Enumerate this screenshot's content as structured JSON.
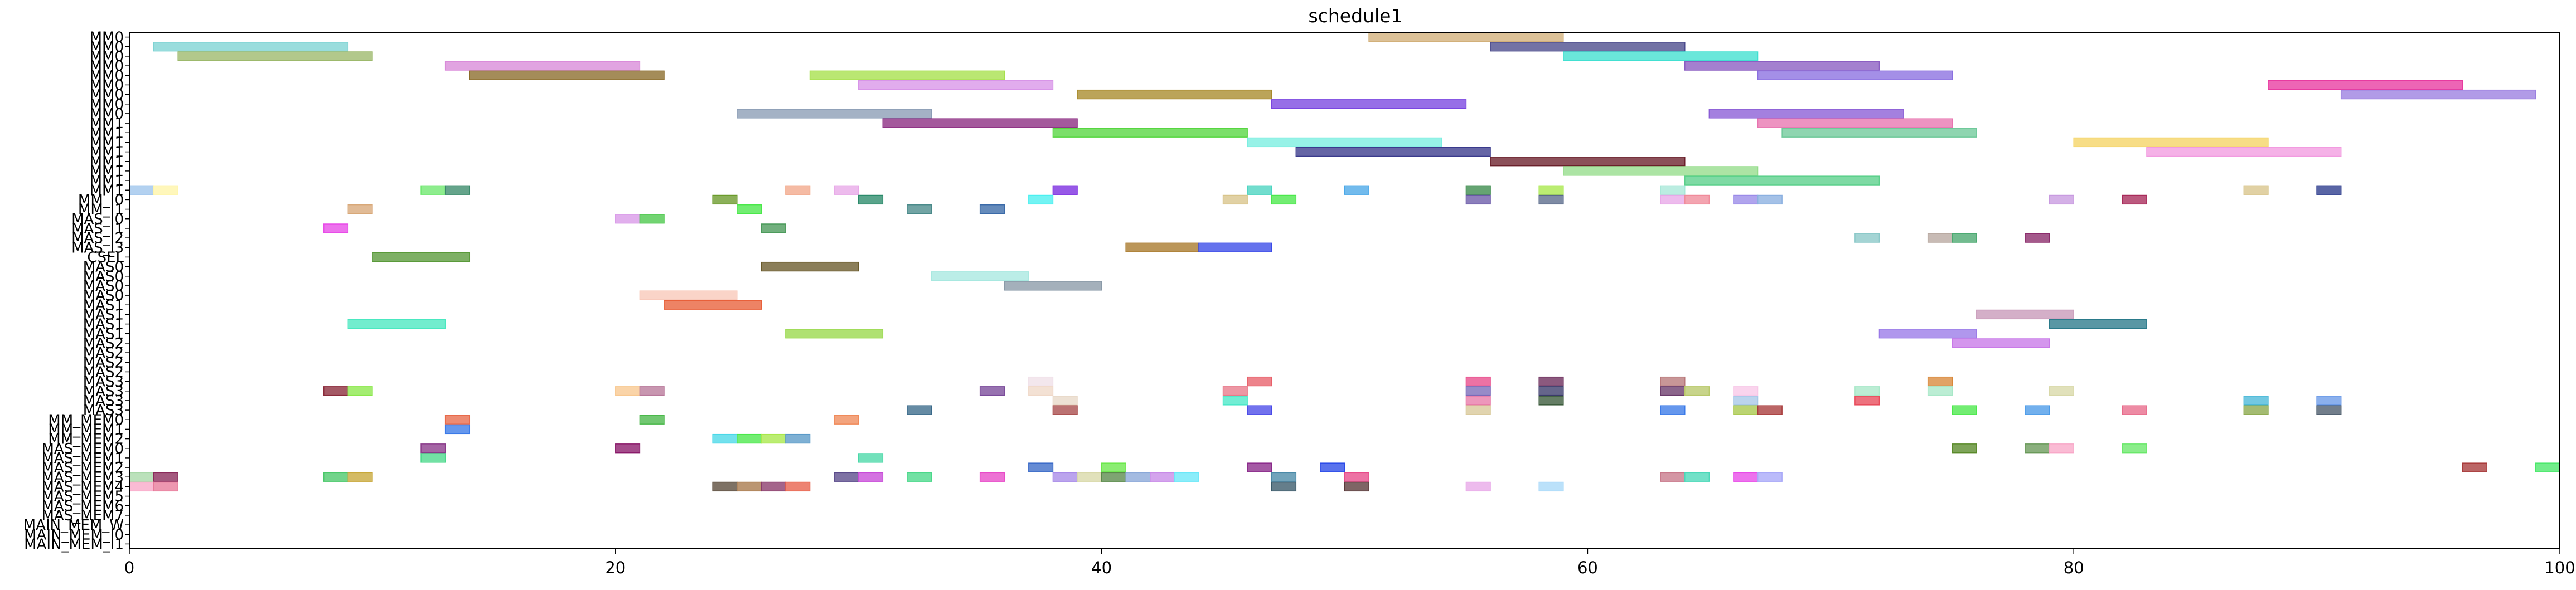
{
  "chart_data": {
    "type": "gantt",
    "title": "schedule1",
    "xlabel": "",
    "ylabel": "",
    "xlim": [
      0,
      100
    ],
    "xticks": [
      0,
      20,
      40,
      60,
      80,
      100
    ],
    "xtick_labels": [
      "0",
      "20",
      "40",
      "60",
      "80",
      "100"
    ],
    "grid": false,
    "rows": [
      "MM0",
      "MM0",
      "MM0",
      "MM0",
      "MM0",
      "MM0",
      "MM0",
      "MM0",
      "MM0",
      "MM1",
      "MM1",
      "MM1",
      "MM1",
      "MM1",
      "MM1",
      "MM1",
      "MM1",
      "MM_I0",
      "MM_I1",
      "MAS_I0",
      "MAS_I1",
      "MAS_I2",
      "MAS_I3",
      "CSEL",
      "MAS0",
      "MAS0",
      "MAS0",
      "MAS0",
      "MAS1",
      "MAS1",
      "MAS1",
      "MAS1",
      "MAS2",
      "MAS2",
      "MAS2",
      "MAS2",
      "MAS3",
      "MAS3",
      "MAS3",
      "MAS3",
      "MM_MEM0",
      "MM_MEM1",
      "MM_MEM2",
      "MAS_MEM0",
      "MAS_MEM1",
      "MAS_MEM2",
      "MAS_MEM3",
      "MAS_MEM4",
      "MAS_MEM5",
      "MAS_MEM6",
      "MAS_MEM7",
      "MAIN_MEM_W",
      "MAIN_MEM_I0",
      "MAIN_MEM_I1"
    ],
    "bars": [
      {
        "row": 0,
        "start": 51,
        "end": 59,
        "color": "#d2b07a"
      },
      {
        "row": 1,
        "start": 1,
        "end": 9,
        "color": "#7ed3d3"
      },
      {
        "row": 1,
        "start": 56,
        "end": 64,
        "color": "#4a4a8c"
      },
      {
        "row": 2,
        "start": 2,
        "end": 10,
        "color": "#9cb86a"
      },
      {
        "row": 2,
        "start": 59,
        "end": 67,
        "color": "#40e0d0"
      },
      {
        "row": 3,
        "start": 13,
        "end": 21,
        "color": "#d98bd9"
      },
      {
        "row": 3,
        "start": 64,
        "end": 72,
        "color": "#8a5cc2"
      },
      {
        "row": 4,
        "start": 14,
        "end": 22,
        "color": "#8b6b2a"
      },
      {
        "row": 4,
        "start": 28,
        "end": 36,
        "color": "#a6e04a"
      },
      {
        "row": 4,
        "start": 67,
        "end": 75,
        "color": "#8a6fe0"
      },
      {
        "row": 5,
        "start": 30,
        "end": 38,
        "color": "#d895e8"
      },
      {
        "row": 5,
        "start": 88,
        "end": 96,
        "color": "#e83aa0"
      },
      {
        "row": 6,
        "start": 39,
        "end": 47,
        "color": "#a88a2a"
      },
      {
        "row": 6,
        "start": 91,
        "end": 99,
        "color": "#9b7fe0"
      },
      {
        "row": 7,
        "start": 47,
        "end": 55,
        "color": "#7a45e0"
      },
      {
        "row": 8,
        "start": 25,
        "end": 33,
        "color": "#8a9cb5"
      },
      {
        "row": 8,
        "start": 65,
        "end": 73,
        "color": "#8a5cd6"
      },
      {
        "row": 9,
        "start": 31,
        "end": 39,
        "color": "#8a2a80"
      },
      {
        "row": 9,
        "start": 67,
        "end": 75,
        "color": "#e874b0"
      },
      {
        "row": 10,
        "start": 38,
        "end": 46,
        "color": "#56d640"
      },
      {
        "row": 10,
        "start": 68,
        "end": 76,
        "color": "#6fc99a"
      },
      {
        "row": 11,
        "start": 46,
        "end": 54,
        "color": "#7aeee0"
      },
      {
        "row": 11,
        "start": 80,
        "end": 88,
        "color": "#f5d464"
      },
      {
        "row": 12,
        "start": 48,
        "end": 56,
        "color": "#3a3a8c"
      },
      {
        "row": 12,
        "start": 83,
        "end": 91,
        "color": "#f29be0"
      },
      {
        "row": 13,
        "start": 56,
        "end": 64,
        "color": "#6a1f2a"
      },
      {
        "row": 14,
        "start": 59,
        "end": 67,
        "color": "#95dd8a"
      },
      {
        "row": 15,
        "start": 64,
        "end": 72,
        "color": "#5ad08a"
      },
      {
        "row": 16,
        "start": 0,
        "end": 1,
        "color": "#9ec4ec"
      },
      {
        "row": 16,
        "start": 1,
        "end": 2,
        "color": "#fff5a8"
      },
      {
        "row": 16,
        "start": 12,
        "end": 13,
        "color": "#6ee86e"
      },
      {
        "row": 16,
        "start": 13,
        "end": 14,
        "color": "#3a8a6a"
      },
      {
        "row": 16,
        "start": 27,
        "end": 28,
        "color": "#f2a88a"
      },
      {
        "row": 16,
        "start": 29,
        "end": 30,
        "color": "#e8a8e8"
      },
      {
        "row": 16,
        "start": 38,
        "end": 39,
        "color": "#7a2ae0"
      },
      {
        "row": 16,
        "start": 46,
        "end": 47,
        "color": "#4ad4c0"
      },
      {
        "row": 16,
        "start": 50,
        "end": 51,
        "color": "#4aa8e8"
      },
      {
        "row": 16,
        "start": 55,
        "end": 56,
        "color": "#3a8a4a"
      },
      {
        "row": 16,
        "start": 58,
        "end": 59,
        "color": "#a8e84a"
      },
      {
        "row": 16,
        "start": 63,
        "end": 64,
        "color": "#a8e8d8"
      },
      {
        "row": 16,
        "start": 87,
        "end": 88,
        "color": "#d8c48a"
      },
      {
        "row": 16,
        "start": 90,
        "end": 91,
        "color": "#2a3a8c"
      },
      {
        "row": 17,
        "start": 24,
        "end": 25,
        "color": "#6a9a2a"
      },
      {
        "row": 17,
        "start": 30,
        "end": 31,
        "color": "#2a8a6a"
      },
      {
        "row": 17,
        "start": 37,
        "end": 38,
        "color": "#4af0f0"
      },
      {
        "row": 17,
        "start": 45,
        "end": 46,
        "color": "#d8c48a"
      },
      {
        "row": 17,
        "start": 47,
        "end": 48,
        "color": "#4ae84a"
      },
      {
        "row": 17,
        "start": 55,
        "end": 56,
        "color": "#6a5aa8"
      },
      {
        "row": 17,
        "start": 58,
        "end": 59,
        "color": "#5a6a8a"
      },
      {
        "row": 17,
        "start": 63,
        "end": 64,
        "color": "#e8a8e8"
      },
      {
        "row": 17,
        "start": 64,
        "end": 65,
        "color": "#f08a9a"
      },
      {
        "row": 17,
        "start": 66,
        "end": 67,
        "color": "#9a8ae8"
      },
      {
        "row": 17,
        "start": 67,
        "end": 68,
        "color": "#8ab0e0"
      },
      {
        "row": 17,
        "start": 79,
        "end": 80,
        "color": "#c89ae0"
      },
      {
        "row": 17,
        "start": 82,
        "end": 83,
        "color": "#a82a5a"
      },
      {
        "row": 18,
        "start": 9,
        "end": 10,
        "color": "#d8a878"
      },
      {
        "row": 18,
        "start": 25,
        "end": 26,
        "color": "#4ae84a"
      },
      {
        "row": 18,
        "start": 32,
        "end": 33,
        "color": "#4a8a8a"
      },
      {
        "row": 18,
        "start": 35,
        "end": 36,
        "color": "#3a6aa8"
      },
      {
        "row": 19,
        "start": 20,
        "end": 21,
        "color": "#d898e8"
      },
      {
        "row": 19,
        "start": 21,
        "end": 22,
        "color": "#4ac84a"
      },
      {
        "row": 20,
        "start": 8,
        "end": 9,
        "color": "#e84ae8"
      },
      {
        "row": 20,
        "start": 26,
        "end": 27,
        "color": "#4a9a5a"
      },
      {
        "row": 21,
        "start": 71,
        "end": 72,
        "color": "#8ac8c8"
      },
      {
        "row": 21,
        "start": 74,
        "end": 75,
        "color": "#b8a8a0"
      },
      {
        "row": 21,
        "start": 75,
        "end": 76,
        "color": "#4aa870"
      },
      {
        "row": 21,
        "start": 78,
        "end": 79,
        "color": "#8a2a6a"
      },
      {
        "row": 22,
        "start": 41,
        "end": 44,
        "color": "#a8782a"
      },
      {
        "row": 22,
        "start": 44,
        "end": 47,
        "color": "#3a4ae8"
      },
      {
        "row": 23,
        "start": 10,
        "end": 14,
        "color": "#5a9a3a"
      },
      {
        "row": 24,
        "start": 26,
        "end": 30,
        "color": "#6a5a2a"
      },
      {
        "row": 25,
        "start": 33,
        "end": 37,
        "color": "#a8e8e0"
      },
      {
        "row": 26,
        "start": 36,
        "end": 40,
        "color": "#8a9aa8"
      },
      {
        "row": 27,
        "start": 21,
        "end": 25,
        "color": "#f8c8b8"
      },
      {
        "row": 28,
        "start": 22,
        "end": 26,
        "color": "#e8603a"
      },
      {
        "row": 29,
        "start": 76,
        "end": 80,
        "color": "#c898b8"
      },
      {
        "row": 30,
        "start": 9,
        "end": 13,
        "color": "#4ae8c0"
      },
      {
        "row": 30,
        "start": 79,
        "end": 83,
        "color": "#2a7a8a"
      },
      {
        "row": 31,
        "start": 27,
        "end": 31,
        "color": "#98d84a"
      },
      {
        "row": 31,
        "start": 72,
        "end": 76,
        "color": "#9a7ae8"
      },
      {
        "row": 32,
        "start": 75,
        "end": 79,
        "color": "#c878e8"
      },
      {
        "row": 36,
        "start": 37,
        "end": 38,
        "color": "#f0e0e8"
      },
      {
        "row": 36,
        "start": 46,
        "end": 47,
        "color": "#e8606a"
      },
      {
        "row": 36,
        "start": 55,
        "end": 56,
        "color": "#e84a8a"
      },
      {
        "row": 36,
        "start": 58,
        "end": 59,
        "color": "#6a2a5a"
      },
      {
        "row": 36,
        "start": 63,
        "end": 64,
        "color": "#b8787a"
      },
      {
        "row": 36,
        "start": 74,
        "end": 75,
        "color": "#d8883a"
      },
      {
        "row": 37,
        "start": 8,
        "end": 9,
        "color": "#8a2a3a"
      },
      {
        "row": 37,
        "start": 9,
        "end": 10,
        "color": "#8ae84a"
      },
      {
        "row": 37,
        "start": 20,
        "end": 21,
        "color": "#f8c890"
      },
      {
        "row": 37,
        "start": 21,
        "end": 22,
        "color": "#b8789a"
      },
      {
        "row": 37,
        "start": 35,
        "end": 36,
        "color": "#7a4a9a"
      },
      {
        "row": 37,
        "start": 37,
        "end": 38,
        "color": "#f0d8c8"
      },
      {
        "row": 37,
        "start": 45,
        "end": 46,
        "color": "#e87a8a"
      },
      {
        "row": 37,
        "start": 55,
        "end": 56,
        "color": "#7a6ab8"
      },
      {
        "row": 37,
        "start": 58,
        "end": 59,
        "color": "#3a3a6a"
      },
      {
        "row": 37,
        "start": 63,
        "end": 64,
        "color": "#6a3a6a"
      },
      {
        "row": 37,
        "start": 64,
        "end": 65,
        "color": "#b8c86a"
      },
      {
        "row": 37,
        "start": 66,
        "end": 67,
        "color": "#f8c8e8"
      },
      {
        "row": 37,
        "start": 71,
        "end": 72,
        "color": "#a8e8c8"
      },
      {
        "row": 37,
        "start": 74,
        "end": 75,
        "color": "#a8e8c8"
      },
      {
        "row": 37,
        "start": 79,
        "end": 80,
        "color": "#d8d8a8"
      },
      {
        "row": 38,
        "start": 38,
        "end": 39,
        "color": "#e8d8c8"
      },
      {
        "row": 38,
        "start": 45,
        "end": 46,
        "color": "#4ae8c8"
      },
      {
        "row": 38,
        "start": 55,
        "end": 56,
        "color": "#e87aa8"
      },
      {
        "row": 38,
        "start": 58,
        "end": 59,
        "color": "#3a5a3a"
      },
      {
        "row": 38,
        "start": 66,
        "end": 67,
        "color": "#a8c8e8"
      },
      {
        "row": 38,
        "start": 71,
        "end": 72,
        "color": "#e84a5a"
      },
      {
        "row": 38,
        "start": 87,
        "end": 88,
        "color": "#4ab8d8"
      },
      {
        "row": 38,
        "start": 90,
        "end": 91,
        "color": "#6a9ae8"
      },
      {
        "row": 39,
        "start": 32,
        "end": 33,
        "color": "#3a6a8a"
      },
      {
        "row": 39,
        "start": 38,
        "end": 39,
        "color": "#a84a4a"
      },
      {
        "row": 39,
        "start": 46,
        "end": 47,
        "color": "#4a4ae8"
      },
      {
        "row": 39,
        "start": 55,
        "end": 56,
        "color": "#d8c898"
      },
      {
        "row": 39,
        "start": 63,
        "end": 64,
        "color": "#3a7ae8"
      },
      {
        "row": 39,
        "start": 66,
        "end": 67,
        "color": "#a8c84a"
      },
      {
        "row": 39,
        "start": 67,
        "end": 68,
        "color": "#a83a3a"
      },
      {
        "row": 39,
        "start": 75,
        "end": 76,
        "color": "#4ae84a"
      },
      {
        "row": 39,
        "start": 78,
        "end": 79,
        "color": "#4a9ae8"
      },
      {
        "row": 39,
        "start": 82,
        "end": 83,
        "color": "#e86a8a"
      },
      {
        "row": 39,
        "start": 87,
        "end": 88,
        "color": "#8aa84a"
      },
      {
        "row": 39,
        "start": 90,
        "end": 91,
        "color": "#4a5a6a"
      },
      {
        "row": 40,
        "start": 13,
        "end": 14,
        "color": "#e86a4a"
      },
      {
        "row": 40,
        "start": 21,
        "end": 22,
        "color": "#4ab84a"
      },
      {
        "row": 40,
        "start": 29,
        "end": 30,
        "color": "#f08a5a"
      },
      {
        "row": 41,
        "start": 13,
        "end": 14,
        "color": "#3a7ae8"
      },
      {
        "row": 42,
        "start": 24,
        "end": 25,
        "color": "#4ad8e8"
      },
      {
        "row": 42,
        "start": 25,
        "end": 26,
        "color": "#4ae84a"
      },
      {
        "row": 42,
        "start": 26,
        "end": 27,
        "color": "#a8e84a"
      },
      {
        "row": 42,
        "start": 27,
        "end": 28,
        "color": "#5a9ac8"
      },
      {
        "row": 43,
        "start": 12,
        "end": 13,
        "color": "#8a3a8a"
      },
      {
        "row": 43,
        "start": 20,
        "end": 21,
        "color": "#8a1a6a"
      },
      {
        "row": 43,
        "start": 75,
        "end": 76,
        "color": "#5a8a2a"
      },
      {
        "row": 43,
        "start": 78,
        "end": 79,
        "color": "#6a9a5a"
      },
      {
        "row": 43,
        "start": 79,
        "end": 80,
        "color": "#f8a8c8"
      },
      {
        "row": 43,
        "start": 82,
        "end": 83,
        "color": "#6ae86a"
      },
      {
        "row": 44,
        "start": 12,
        "end": 13,
        "color": "#4ad88a"
      },
      {
        "row": 44,
        "start": 30,
        "end": 31,
        "color": "#4ad8a8"
      },
      {
        "row": 45,
        "start": 37,
        "end": 38,
        "color": "#3a6ac8"
      },
      {
        "row": 45,
        "start": 40,
        "end": 41,
        "color": "#6ae84a"
      },
      {
        "row": 45,
        "start": 46,
        "end": 47,
        "color": "#8a2a8a"
      },
      {
        "row": 45,
        "start": 49,
        "end": 50,
        "color": "#2a4ae8"
      },
      {
        "row": 45,
        "start": 96,
        "end": 97,
        "color": "#a83a3a"
      },
      {
        "row": 45,
        "start": 99,
        "end": 100,
        "color": "#4ae86a"
      },
      {
        "row": 46,
        "start": 0,
        "end": 1,
        "color": "#a8d8a8"
      },
      {
        "row": 46,
        "start": 1,
        "end": 2,
        "color": "#8a2a5a"
      },
      {
        "row": 46,
        "start": 8,
        "end": 9,
        "color": "#4ac86a"
      },
      {
        "row": 46,
        "start": 9,
        "end": 10,
        "color": "#c8a83a"
      },
      {
        "row": 46,
        "start": 29,
        "end": 30,
        "color": "#5a4a8a"
      },
      {
        "row": 46,
        "start": 30,
        "end": 31,
        "color": "#c84ad8"
      },
      {
        "row": 46,
        "start": 32,
        "end": 33,
        "color": "#4ad88a"
      },
      {
        "row": 46,
        "start": 35,
        "end": 36,
        "color": "#e84ac8"
      },
      {
        "row": 46,
        "start": 38,
        "end": 39,
        "color": "#a88ae8"
      },
      {
        "row": 46,
        "start": 39,
        "end": 40,
        "color": "#d8d8a8"
      },
      {
        "row": 46,
        "start": 40,
        "end": 41,
        "color": "#5a8a4a"
      },
      {
        "row": 46,
        "start": 41,
        "end": 42,
        "color": "#8aa8d8"
      },
      {
        "row": 46,
        "start": 42,
        "end": 43,
        "color": "#c88ae8"
      },
      {
        "row": 46,
        "start": 43,
        "end": 44,
        "color": "#6ae8f8"
      },
      {
        "row": 46,
        "start": 47,
        "end": 48,
        "color": "#4a8aa8"
      },
      {
        "row": 46,
        "start": 50,
        "end": 51,
        "color": "#e84a8a"
      },
      {
        "row": 46,
        "start": 63,
        "end": 64,
        "color": "#c8788a"
      },
      {
        "row": 46,
        "start": 64,
        "end": 65,
        "color": "#4ad8b8"
      },
      {
        "row": 46,
        "start": 66,
        "end": 67,
        "color": "#e84ae8"
      },
      {
        "row": 46,
        "start": 67,
        "end": 68,
        "color": "#a8a8f8"
      },
      {
        "row": 47,
        "start": 0,
        "end": 1,
        "color": "#f8a8c8"
      },
      {
        "row": 47,
        "start": 1,
        "end": 2,
        "color": "#e87a9a"
      },
      {
        "row": 47,
        "start": 24,
        "end": 25,
        "color": "#5a4a3a"
      },
      {
        "row": 47,
        "start": 25,
        "end": 26,
        "color": "#a8784a"
      },
      {
        "row": 47,
        "start": 26,
        "end": 27,
        "color": "#8a3a6a"
      },
      {
        "row": 47,
        "start": 27,
        "end": 28,
        "color": "#e8604a"
      },
      {
        "row": 47,
        "start": 47,
        "end": 48,
        "color": "#3a5a6a"
      },
      {
        "row": 47,
        "start": 50,
        "end": 51,
        "color": "#5a3a3a"
      },
      {
        "row": 47,
        "start": 55,
        "end": 56,
        "color": "#e8a8e8"
      },
      {
        "row": 47,
        "start": 58,
        "end": 59,
        "color": "#a8d8f8"
      }
    ]
  }
}
